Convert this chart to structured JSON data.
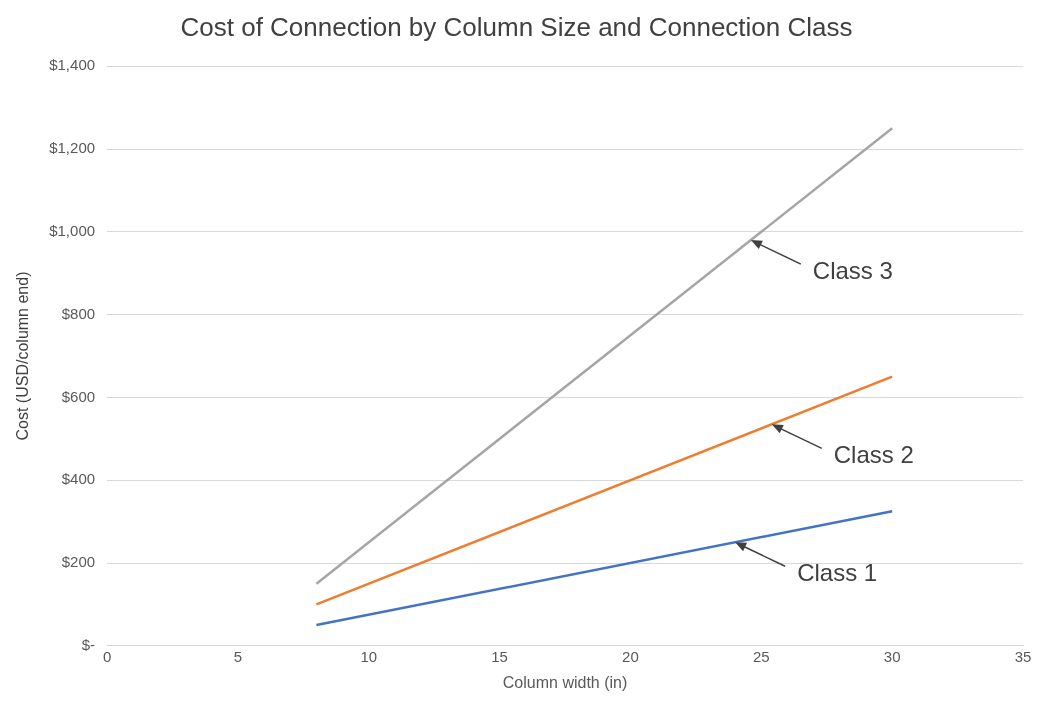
{
  "chart_data": {
    "type": "line",
    "title": "Cost of Connection by Column Size and Connection Class",
    "xlabel": "Column width (in)",
    "ylabel": "Cost (USD/column end)",
    "x": [
      8,
      30
    ],
    "series": [
      {
        "color": "#4472c4",
        "values": [
          50,
          325
        ]
      },
      {
        "color": "#ed7d31",
        "values": [
          100,
          650
        ]
      },
      {
        "color": "#a5a5a5",
        "values": [
          150,
          1250
        ]
      }
    ],
    "annotations": [
      {
        "text": "Class 3",
        "x": 24.6,
        "y": 980
      },
      {
        "text": "Class 2",
        "x": 25.4,
        "y": 535
      },
      {
        "text": "Class 1",
        "x": 24,
        "y": 250
      }
    ],
    "xlim": [
      0,
      35
    ],
    "xticks": [
      0,
      5,
      10,
      15,
      20,
      25,
      30,
      35
    ],
    "ylim": [
      0,
      1400
    ],
    "yticks": [
      {
        "value": 0,
        "label": "$-"
      },
      {
        "value": 200,
        "label": "$200"
      },
      {
        "value": 400,
        "label": "$400"
      },
      {
        "value": 600,
        "label": "$600"
      },
      {
        "value": 800,
        "label": "$800"
      },
      {
        "value": 1000,
        "label": "$1,000"
      },
      {
        "value": 1200,
        "label": "$1,200"
      },
      {
        "value": 1400,
        "label": "$1,400"
      }
    ],
    "grid": "y",
    "legend": false,
    "marker": "none",
    "line_style": "solid"
  }
}
